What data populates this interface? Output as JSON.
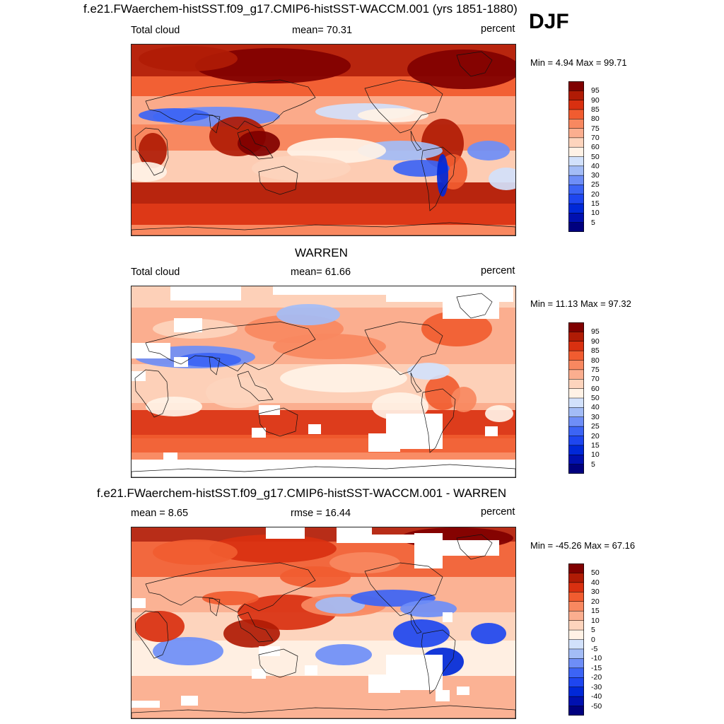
{
  "season": "DJF",
  "panels": [
    {
      "title": "f.e21.FWaerchem-histSST.f09_g17.CMIP6-histSST-WACCM.001 (yrs 1851-1880)",
      "left_label": "Total cloud",
      "center_label": "mean=  70.31",
      "right_label": "percent",
      "minmax": "Min =   4.94 Max =  99.71"
    },
    {
      "title": "WARREN",
      "left_label": "Total cloud",
      "center_label": "mean=  61.66",
      "right_label": "percent",
      "minmax": "Min =  11.13 Max =  97.32"
    },
    {
      "title": "f.e21.FWaerchem-histSST.f09_g17.CMIP6-histSST-WACCM.001 - WARREN",
      "left_label": "mean =   8.65",
      "center_label": "rmse =  16.44",
      "right_label": "percent",
      "minmax": "Min = -45.26 Max =  67.16"
    }
  ],
  "chart_data": [
    {
      "type": "heatmap",
      "title": "f.e21.FWaerchem-histSST.f09_g17.CMIP6-histSST-WACCM.001 (yrs 1851-1880)",
      "variable": "Total cloud",
      "units": "percent",
      "mean": 70.31,
      "min": 4.94,
      "max": 99.71,
      "colorbar_levels": [
        5,
        10,
        15,
        20,
        25,
        30,
        40,
        50,
        60,
        70,
        75,
        80,
        85,
        90,
        95
      ],
      "colorbar_labels": [
        "95",
        "90",
        "85",
        "80",
        "75",
        "70",
        "60",
        "50",
        "40",
        "30",
        "25",
        "20",
        "15",
        "10",
        "5"
      ],
      "colors": [
        "#00007f",
        "#0010b0",
        "#0028d8",
        "#1e46f0",
        "#3c64f5",
        "#6e8ef7",
        "#a3bcf6",
        "#d2e1fb",
        "#fff2e6",
        "#fdd4bd",
        "#fbae8f",
        "#f88860",
        "#f15c30",
        "#d93010",
        "#b01b05",
        "#800000"
      ]
    },
    {
      "type": "heatmap",
      "title": "WARREN",
      "variable": "Total cloud",
      "units": "percent",
      "mean": 61.66,
      "min": 11.13,
      "max": 97.32,
      "colorbar_levels": [
        5,
        10,
        15,
        20,
        25,
        30,
        40,
        50,
        60,
        70,
        75,
        80,
        85,
        90,
        95
      ],
      "colorbar_labels": [
        "95",
        "90",
        "85",
        "80",
        "75",
        "70",
        "60",
        "50",
        "40",
        "30",
        "25",
        "20",
        "15",
        "10",
        "5"
      ],
      "colors": [
        "#00007f",
        "#0010b0",
        "#0028d8",
        "#1e46f0",
        "#3c64f5",
        "#6e8ef7",
        "#a3bcf6",
        "#d2e1fb",
        "#fff2e6",
        "#fdd4bd",
        "#fbae8f",
        "#f88860",
        "#f15c30",
        "#d93010",
        "#b01b05",
        "#800000"
      ]
    },
    {
      "type": "heatmap",
      "title": "f.e21.FWaerchem-histSST.f09_g17.CMIP6-histSST-WACCM.001 - WARREN",
      "units": "percent",
      "mean": 8.65,
      "rmse": 16.44,
      "min": -45.26,
      "max": 67.16,
      "colorbar_levels": [
        -50,
        -40,
        -30,
        -20,
        -15,
        -10,
        -5,
        0,
        5,
        10,
        15,
        20,
        30,
        40,
        50
      ],
      "colorbar_labels": [
        "50",
        "40",
        "30",
        "20",
        "15",
        "10",
        "5",
        "0",
        "-5",
        "-10",
        "-15",
        "-20",
        "-30",
        "-40",
        "-50"
      ],
      "colors": [
        "#00007f",
        "#0010b0",
        "#0028d8",
        "#1e46f0",
        "#3c64f5",
        "#6e8ef7",
        "#a3bcf6",
        "#d2e1fb",
        "#fff2e6",
        "#fdd4bd",
        "#fbae8f",
        "#f88860",
        "#f15c30",
        "#d93010",
        "#b01b05",
        "#800000"
      ]
    }
  ]
}
